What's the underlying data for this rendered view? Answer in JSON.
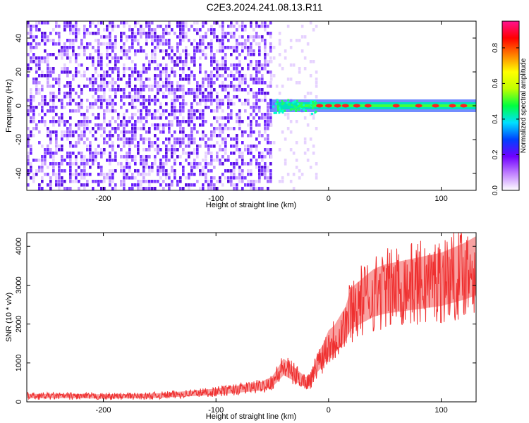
{
  "page": {
    "title": "C2E3.2024.241.08.13.R11"
  },
  "chart_data": [
    {
      "type": "heatmap",
      "xlabel": "Height of straight line (km)",
      "ylabel": "Frequency (Hz)",
      "xlim": [
        -268,
        131
      ],
      "ylim": [
        -50,
        50
      ],
      "x_ticks": [
        -200,
        -100,
        0,
        100
      ],
      "y_ticks": [
        -40,
        -20,
        0,
        20,
        40
      ],
      "grid": false,
      "noise_region_x": [
        -268,
        -52
      ],
      "signal_band_center_hz": 0,
      "colorbar": {
        "label": "Normalized spectral amplitude",
        "range": [
          0,
          0.95
        ],
        "ticks": [
          0.0,
          0.2,
          0.4,
          0.6,
          0.8
        ],
        "tick_labels": [
          "0.0",
          "0.2",
          "0.4",
          "0.6",
          "0.8"
        ],
        "colors": [
          "#ffffff",
          "#c080ff",
          "#7000ff",
          "#0040ff",
          "#00e0ff",
          "#00ff40",
          "#c0ff00",
          "#ffff00",
          "#ff8000",
          "#ff0000",
          "#ff1090"
        ]
      }
    },
    {
      "type": "line",
      "xlabel": "Height of straight line (km)",
      "ylabel": "SNR (10 * v/v)",
      "xlim": [
        -268,
        131
      ],
      "ylim": [
        0,
        4350
      ],
      "x_ticks": [
        -200,
        -100,
        0,
        100
      ],
      "y_ticks": [
        0,
        1000,
        2000,
        3000,
        4000
      ],
      "grid": false,
      "color": "#ef3030",
      "series": [
        {
          "x": [
            -268,
            -240,
            -200,
            -160,
            -140,
            -120,
            -100,
            -80,
            -60,
            -50,
            -45,
            -40,
            -35,
            -30,
            -25,
            -20,
            -15,
            -10,
            -5,
            0,
            5,
            10,
            15,
            20,
            25,
            30,
            40,
            50,
            60,
            80,
            100,
            120,
            131
          ],
          "y": [
            150,
            150,
            140,
            150,
            180,
            220,
            260,
            330,
            400,
            520,
            700,
            900,
            800,
            700,
            600,
            500,
            600,
            1000,
            1200,
            1500,
            1600,
            1800,
            2000,
            2400,
            2500,
            2600,
            2800,
            2900,
            2950,
            3050,
            3150,
            3350,
            3500
          ]
        }
      ]
    }
  ]
}
